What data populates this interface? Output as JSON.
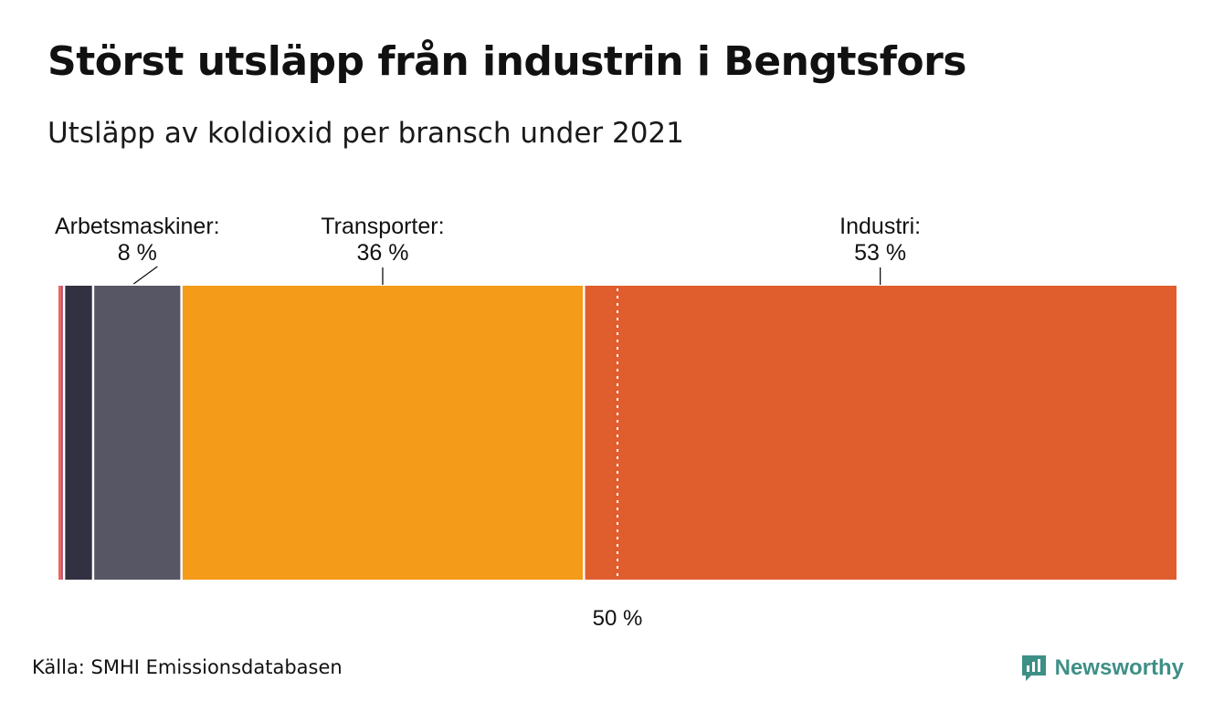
{
  "header": {
    "title": "Störst utsläpp från industrin i Bengtsfors",
    "subtitle": "Utsläpp av koldioxid per bransch under 2021"
  },
  "footer": {
    "source": "Källa: SMHI Emissionsdatabasen",
    "brand": "Newsworthy"
  },
  "colors": {
    "brand": "#3e8f86",
    "divider": "#ffffff"
  },
  "chart_data": {
    "type": "bar",
    "orientation": "horizontal-stacked-100",
    "title": "Störst utsläpp från industrin i Bengtsfors",
    "subtitle": "Utsläpp av koldioxid per bransch under 2021",
    "unit": "%",
    "xlim": [
      0,
      100
    ],
    "reference_line": {
      "value": 50,
      "label": "50 %"
    },
    "segments": [
      {
        "value": 0.25,
        "color": "#e86a5c"
      },
      {
        "value": 0.25,
        "color": "#b84a78"
      },
      {
        "value": 2.6,
        "color": "#313142"
      },
      {
        "value": 7.9,
        "color": "#565665",
        "name": "Arbetsmaskiner:",
        "label": "8 %"
      },
      {
        "value": 36,
        "color": "#f49b1a",
        "name": "Transporter:",
        "label": "36 %"
      },
      {
        "value": 53,
        "color": "#e05e2e",
        "name": "Industri:",
        "label": "53 %"
      }
    ]
  }
}
